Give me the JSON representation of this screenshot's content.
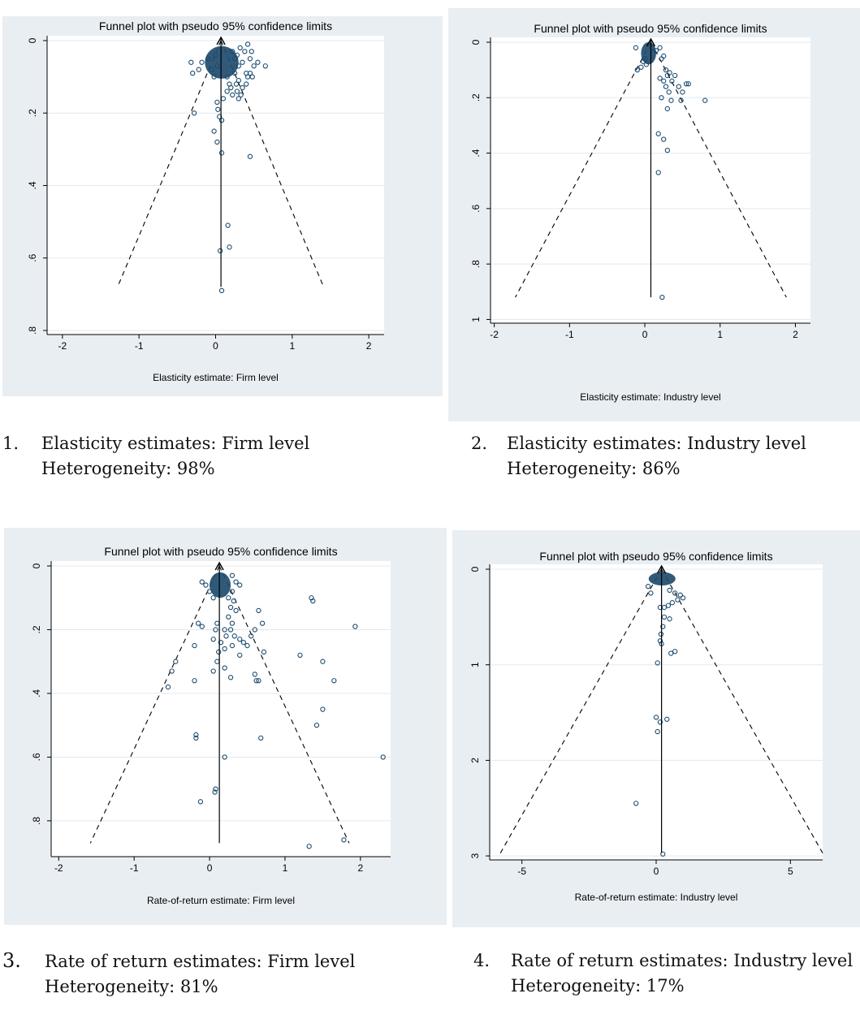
{
  "charts": [
    {
      "type": "scatter",
      "title": "Funnel plot with pseudo 95% confidence limits",
      "xlabel": "Elasticity estimate: Firm level",
      "xlim": [
        -2.2,
        2.2
      ],
      "ylim": [
        0,
        0.8
      ],
      "xticks": [
        -2,
        -1,
        0,
        1,
        2
      ],
      "yticks": [
        0,
        0.2,
        0.4,
        0.6,
        0.8
      ],
      "xtick_labels": [
        "-2",
        "-1",
        "0",
        "1",
        "2"
      ],
      "ytick_labels": [
        "0",
        ".2",
        ".4",
        ".6",
        ".8"
      ],
      "y_reversed": true,
      "pooled_estimate": 0.07,
      "funnel": {
        "apex": [
          0.07,
          0
        ],
        "bottom_left": [
          -1.28,
          0.68
        ],
        "bottom_right": [
          1.41,
          0.68
        ]
      },
      "cluster": {
        "x": 0.08,
        "y": 0.06,
        "rx": 0.22,
        "ry": 0.045
      },
      "points": [
        [
          -0.32,
          0.06
        ],
        [
          -0.3,
          0.09
        ],
        [
          -0.22,
          0.08
        ],
        [
          -0.18,
          0.06
        ],
        [
          -0.1,
          0.05
        ],
        [
          -0.05,
          0.08
        ],
        [
          -0.02,
          0.1
        ],
        [
          0.0,
          0.04
        ],
        [
          0.02,
          0.07
        ],
        [
          0.22,
          0.03
        ],
        [
          0.25,
          0.05
        ],
        [
          0.28,
          0.04
        ],
        [
          0.3,
          0.07
        ],
        [
          0.32,
          0.02
        ],
        [
          0.35,
          0.06
        ],
        [
          0.38,
          0.03
        ],
        [
          0.4,
          0.09
        ],
        [
          0.42,
          0.01
        ],
        [
          0.45,
          0.05
        ],
        [
          0.47,
          0.03
        ],
        [
          0.5,
          0.07
        ],
        [
          0.55,
          0.06
        ],
        [
          0.65,
          0.07
        ],
        [
          0.3,
          0.11
        ],
        [
          0.35,
          0.13
        ],
        [
          0.4,
          0.12
        ],
        [
          0.42,
          0.1
        ],
        [
          0.45,
          0.09
        ],
        [
          0.48,
          0.1
        ],
        [
          0.28,
          0.14
        ],
        [
          0.22,
          0.15
        ],
        [
          0.3,
          0.16
        ],
        [
          0.2,
          0.13
        ],
        [
          0.18,
          0.12
        ],
        [
          0.15,
          0.14
        ],
        [
          0.1,
          0.16
        ],
        [
          0.25,
          0.09
        ],
        [
          0.27,
          0.12
        ],
        [
          0.33,
          0.15
        ],
        [
          0.15,
          0.1
        ],
        [
          -0.28,
          0.2
        ],
        [
          0.02,
          0.17
        ],
        [
          0.03,
          0.19
        ],
        [
          0.05,
          0.21
        ],
        [
          -0.02,
          0.25
        ],
        [
          0.08,
          0.22
        ],
        [
          0.02,
          0.28
        ],
        [
          0.08,
          0.31
        ],
        [
          0.45,
          0.32
        ],
        [
          0.16,
          0.51
        ],
        [
          0.06,
          0.58
        ],
        [
          0.18,
          0.57
        ],
        [
          0.08,
          0.69
        ]
      ]
    },
    {
      "type": "scatter",
      "title": "Funnel plot with pseudo 95% confidence limits",
      "xlabel": "Elasticity estimate: Industry level",
      "xlim": [
        -2.05,
        2.2
      ],
      "ylim": [
        0,
        1.0
      ],
      "xticks": [
        -2,
        -1,
        0,
        1,
        2
      ],
      "yticks": [
        0,
        0.2,
        0.4,
        0.6,
        0.8,
        1
      ],
      "xtick_labels": [
        "-2",
        "-1",
        "0",
        "1",
        "2"
      ],
      "ytick_labels": [
        "0",
        ".2",
        ".4",
        ".6",
        ".8",
        "1"
      ],
      "y_reversed": true,
      "pooled_estimate": 0.08,
      "funnel": {
        "apex": [
          0.08,
          0
        ],
        "bottom_left": [
          -1.72,
          0.92
        ],
        "bottom_right": [
          1.88,
          0.92
        ]
      },
      "cluster": {
        "x": 0.05,
        "y": 0.04,
        "rx": 0.1,
        "ry": 0.04
      },
      "points": [
        [
          -0.12,
          0.02
        ],
        [
          -0.1,
          0.1
        ],
        [
          -0.05,
          0.09
        ],
        [
          -0.02,
          0.07
        ],
        [
          0.0,
          0.06
        ],
        [
          0.02,
          0.08
        ],
        [
          0.1,
          0.02
        ],
        [
          0.15,
          0.03
        ],
        [
          0.2,
          0.02
        ],
        [
          0.22,
          0.06
        ],
        [
          0.25,
          0.05
        ],
        [
          0.28,
          0.1
        ],
        [
          0.3,
          0.12
        ],
        [
          0.33,
          0.11
        ],
        [
          0.36,
          0.14
        ],
        [
          0.4,
          0.12
        ],
        [
          0.45,
          0.16
        ],
        [
          0.5,
          0.18
        ],
        [
          0.55,
          0.15
        ],
        [
          0.58,
          0.15
        ],
        [
          0.28,
          0.16
        ],
        [
          0.32,
          0.18
        ],
        [
          0.35,
          0.21
        ],
        [
          0.2,
          0.13
        ],
        [
          0.25,
          0.14
        ],
        [
          0.48,
          0.21
        ],
        [
          0.8,
          0.21
        ],
        [
          0.22,
          0.2
        ],
        [
          0.3,
          0.24
        ],
        [
          0.18,
          0.33
        ],
        [
          0.25,
          0.35
        ],
        [
          0.3,
          0.39
        ],
        [
          0.18,
          0.47
        ],
        [
          0.23,
          0.92
        ]
      ]
    },
    {
      "type": "scatter",
      "title": "Funnel plot with pseudo 95% confidence limits",
      "xlabel": "Rate-of-return estimate: Firm level",
      "xlim": [
        -2.1,
        2.4
      ],
      "ylim": [
        0,
        0.9
      ],
      "xticks": [
        -2,
        -1,
        0,
        1,
        2
      ],
      "yticks": [
        0,
        0.2,
        0.4,
        0.6,
        0.8
      ],
      "xtick_labels": [
        "-2",
        "-1",
        "0",
        "1",
        "2"
      ],
      "ytick_labels": [
        "0",
        ".2",
        ".4",
        ".6",
        ".8"
      ],
      "y_reversed": true,
      "pooled_estimate": 0.13,
      "funnel": {
        "apex": [
          0.13,
          0
        ],
        "bottom_left": [
          -1.58,
          0.87
        ],
        "bottom_right": [
          1.85,
          0.87
        ]
      },
      "cluster": {
        "x": 0.14,
        "y": 0.06,
        "rx": 0.14,
        "ry": 0.04
      },
      "points": [
        [
          -0.1,
          0.05
        ],
        [
          -0.05,
          0.06
        ],
        [
          0.0,
          0.08
        ],
        [
          0.05,
          0.1
        ],
        [
          0.3,
          0.03
        ],
        [
          0.35,
          0.05
        ],
        [
          0.4,
          0.06
        ],
        [
          0.3,
          0.08
        ],
        [
          0.25,
          0.1
        ],
        [
          0.32,
          0.11
        ],
        [
          0.28,
          0.13
        ],
        [
          0.35,
          0.14
        ],
        [
          0.25,
          0.16
        ],
        [
          0.3,
          0.18
        ],
        [
          0.2,
          0.2
        ],
        [
          0.22,
          0.22
        ],
        [
          0.15,
          0.24
        ],
        [
          0.28,
          0.2
        ],
        [
          0.33,
          0.22
        ],
        [
          0.1,
          0.18
        ],
        [
          0.08,
          0.2
        ],
        [
          0.05,
          0.23
        ],
        [
          0.12,
          0.27
        ],
        [
          0.2,
          0.26
        ],
        [
          0.3,
          0.25
        ],
        [
          0.1,
          0.3
        ],
        [
          0.2,
          0.32
        ],
        [
          0.05,
          0.33
        ],
        [
          0.28,
          0.35
        ],
        [
          -0.15,
          0.18
        ],
        [
          -0.1,
          0.19
        ],
        [
          -0.2,
          0.25
        ],
        [
          -0.45,
          0.3
        ],
        [
          -0.5,
          0.33
        ],
        [
          -0.55,
          0.38
        ],
        [
          -0.2,
          0.36
        ],
        [
          0.4,
          0.23
        ],
        [
          0.45,
          0.24
        ],
        [
          0.5,
          0.25
        ],
        [
          0.55,
          0.22
        ],
        [
          0.6,
          0.2
        ],
        [
          0.65,
          0.14
        ],
        [
          0.7,
          0.18
        ],
        [
          0.72,
          0.27
        ],
        [
          0.4,
          0.28
        ],
        [
          0.6,
          0.34
        ],
        [
          0.62,
          0.36
        ],
        [
          0.65,
          0.36
        ],
        [
          1.35,
          0.1
        ],
        [
          1.37,
          0.11
        ],
        [
          1.93,
          0.19
        ],
        [
          1.2,
          0.28
        ],
        [
          1.5,
          0.3
        ],
        [
          1.65,
          0.36
        ],
        [
          1.5,
          0.45
        ],
        [
          1.42,
          0.5
        ],
        [
          0.68,
          0.54
        ],
        [
          -0.18,
          0.53
        ],
        [
          -0.18,
          0.54
        ],
        [
          0.2,
          0.6
        ],
        [
          2.3,
          0.6
        ],
        [
          0.08,
          0.7
        ],
        [
          0.07,
          0.71
        ],
        [
          -0.12,
          0.74
        ],
        [
          1.78,
          0.86
        ],
        [
          1.32,
          0.88
        ]
      ]
    },
    {
      "type": "scatter",
      "title": "Funnel plot with pseudo 95% confidence limits",
      "xlabel": "Rate-of-return estimate: Industry level",
      "xlim": [
        -6.2,
        6.2
      ],
      "ylim": [
        0,
        3.0
      ],
      "xticks": [
        -5,
        0,
        5
      ],
      "yticks": [
        0,
        1,
        2,
        3
      ],
      "xtick_labels": [
        "-5",
        "0",
        "5"
      ],
      "ytick_labels": [
        "0",
        "1",
        "2",
        "3"
      ],
      "y_reversed": true,
      "pooled_estimate": 0.2,
      "funnel": {
        "apex": [
          0.2,
          0
        ],
        "bottom_left": [
          -5.8,
          2.97
        ],
        "bottom_right": [
          6.2,
          2.97
        ]
      },
      "cluster": {
        "x": 0.22,
        "y": 0.1,
        "rx": 0.5,
        "ry": 0.07
      },
      "points": [
        [
          -0.3,
          0.18
        ],
        [
          -0.2,
          0.25
        ],
        [
          0.5,
          0.22
        ],
        [
          0.7,
          0.25
        ],
        [
          0.9,
          0.27
        ],
        [
          1.0,
          0.3
        ],
        [
          0.8,
          0.32
        ],
        [
          0.6,
          0.35
        ],
        [
          0.45,
          0.38
        ],
        [
          0.3,
          0.4
        ],
        [
          0.15,
          0.4
        ],
        [
          0.3,
          0.5
        ],
        [
          0.5,
          0.52
        ],
        [
          0.25,
          0.6
        ],
        [
          0.18,
          0.68
        ],
        [
          0.15,
          0.75
        ],
        [
          0.2,
          0.78
        ],
        [
          0.55,
          0.88
        ],
        [
          0.7,
          0.86
        ],
        [
          0.05,
          0.98
        ],
        [
          0.0,
          1.55
        ],
        [
          0.15,
          1.6
        ],
        [
          0.4,
          1.57
        ],
        [
          0.05,
          1.7
        ],
        [
          -0.75,
          2.45
        ],
        [
          0.25,
          2.98
        ]
      ]
    }
  ],
  "captions": [
    {
      "number": "1.",
      "title": "Elasticity estimates: Firm level",
      "heterogeneity": "Heterogeneity: 98%"
    },
    {
      "number": "2.",
      "title": "Elasticity estimates: Industry level",
      "heterogeneity": "Heterogeneity: 86%"
    },
    {
      "number": "3.",
      "title": "Rate of return estimates: Firm level",
      "heterogeneity": "Heterogeneity: 81%"
    },
    {
      "number": "4.",
      "title": "Rate of return estimates: Industry level",
      "heterogeneity": "Heterogeneity: 17%"
    }
  ],
  "colors": {
    "panel_bg": "#e9eef3",
    "plot_bg": "#ffffff",
    "grid": "#e3e8ee",
    "marker": "#1a4a6e",
    "cluster": "#1f4c6e"
  }
}
